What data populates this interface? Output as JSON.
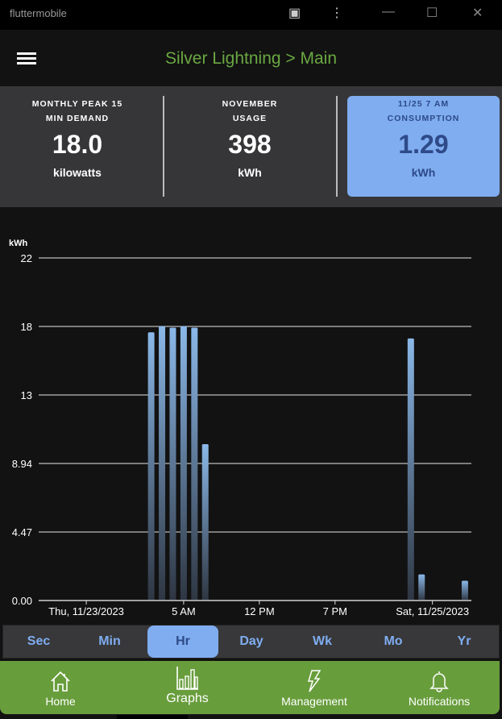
{
  "window": {
    "title": "fluttermobile"
  },
  "appbar": {
    "title": "Silver Lightning > Main"
  },
  "cards": [
    {
      "label1": "MONTHLY PEAK 15",
      "label2": "MIN DEMAND",
      "value": "18.0",
      "unit": "kilowatts"
    },
    {
      "label1": "NOVEMBER",
      "label2": "USAGE",
      "value": "398",
      "unit": "kWh"
    },
    {
      "label1": "11/25 7 AM",
      "label2": "CONSUMPTION",
      "value": "1.29",
      "unit": "kWh",
      "selected": true
    }
  ],
  "chart_data": {
    "type": "bar",
    "ylabel": "kWh",
    "ylim": [
      0,
      22.35
    ],
    "yticks": [
      {
        "v": 0,
        "label": "0.00"
      },
      {
        "v": 4.47,
        "label": "4.47"
      },
      {
        "v": 8.94,
        "label": "8.94"
      },
      {
        "v": 13.41,
        "label": "13"
      },
      {
        "v": 17.88,
        "label": "18"
      },
      {
        "v": 22.35,
        "label": "22"
      }
    ],
    "xlim": [
      "2023-11-23T15:36",
      "2023-11-25T07:36"
    ],
    "xticks": [
      {
        "t": "2023-11-23T20:00",
        "label": "Thu, 11/23/2023"
      },
      {
        "t": "2023-11-24T05:00",
        "label": "5 AM"
      },
      {
        "t": "2023-11-24T12:00",
        "label": "12 PM"
      },
      {
        "t": "2023-11-24T19:00",
        "label": "7 PM"
      },
      {
        "t": "2023-11-25T04:00",
        "label": "Sat, 11/25/2023"
      }
    ],
    "grid": true,
    "bar_color": "#8ab8e8",
    "points": [
      {
        "t": "2023-11-24T02:00",
        "v": 17.5
      },
      {
        "t": "2023-11-24T03:00",
        "v": 17.9
      },
      {
        "t": "2023-11-24T04:00",
        "v": 17.8
      },
      {
        "t": "2023-11-24T05:00",
        "v": 17.9
      },
      {
        "t": "2023-11-24T06:00",
        "v": 17.8
      },
      {
        "t": "2023-11-24T07:00",
        "v": 10.2
      },
      {
        "t": "2023-11-25T02:00",
        "v": 17.1
      },
      {
        "t": "2023-11-25T03:00",
        "v": 1.7
      },
      {
        "t": "2023-11-25T07:00",
        "v": 1.29
      }
    ]
  },
  "tabs": [
    {
      "label": "Sec"
    },
    {
      "label": "Min"
    },
    {
      "label": "Hr",
      "selected": true
    },
    {
      "label": "Day"
    },
    {
      "label": "Wk"
    },
    {
      "label": "Mo"
    },
    {
      "label": "Yr"
    }
  ],
  "nav": [
    {
      "label": "Home",
      "icon": "home-icon"
    },
    {
      "label": "Graphs",
      "icon": "bar-chart-icon",
      "selected": true
    },
    {
      "label": "Management",
      "icon": "lightning-icon"
    },
    {
      "label": "Notifications",
      "icon": "bell-icon"
    }
  ],
  "colors": {
    "accent": "#7fadf0",
    "brand": "#689d3c",
    "title": "#6aa842"
  }
}
